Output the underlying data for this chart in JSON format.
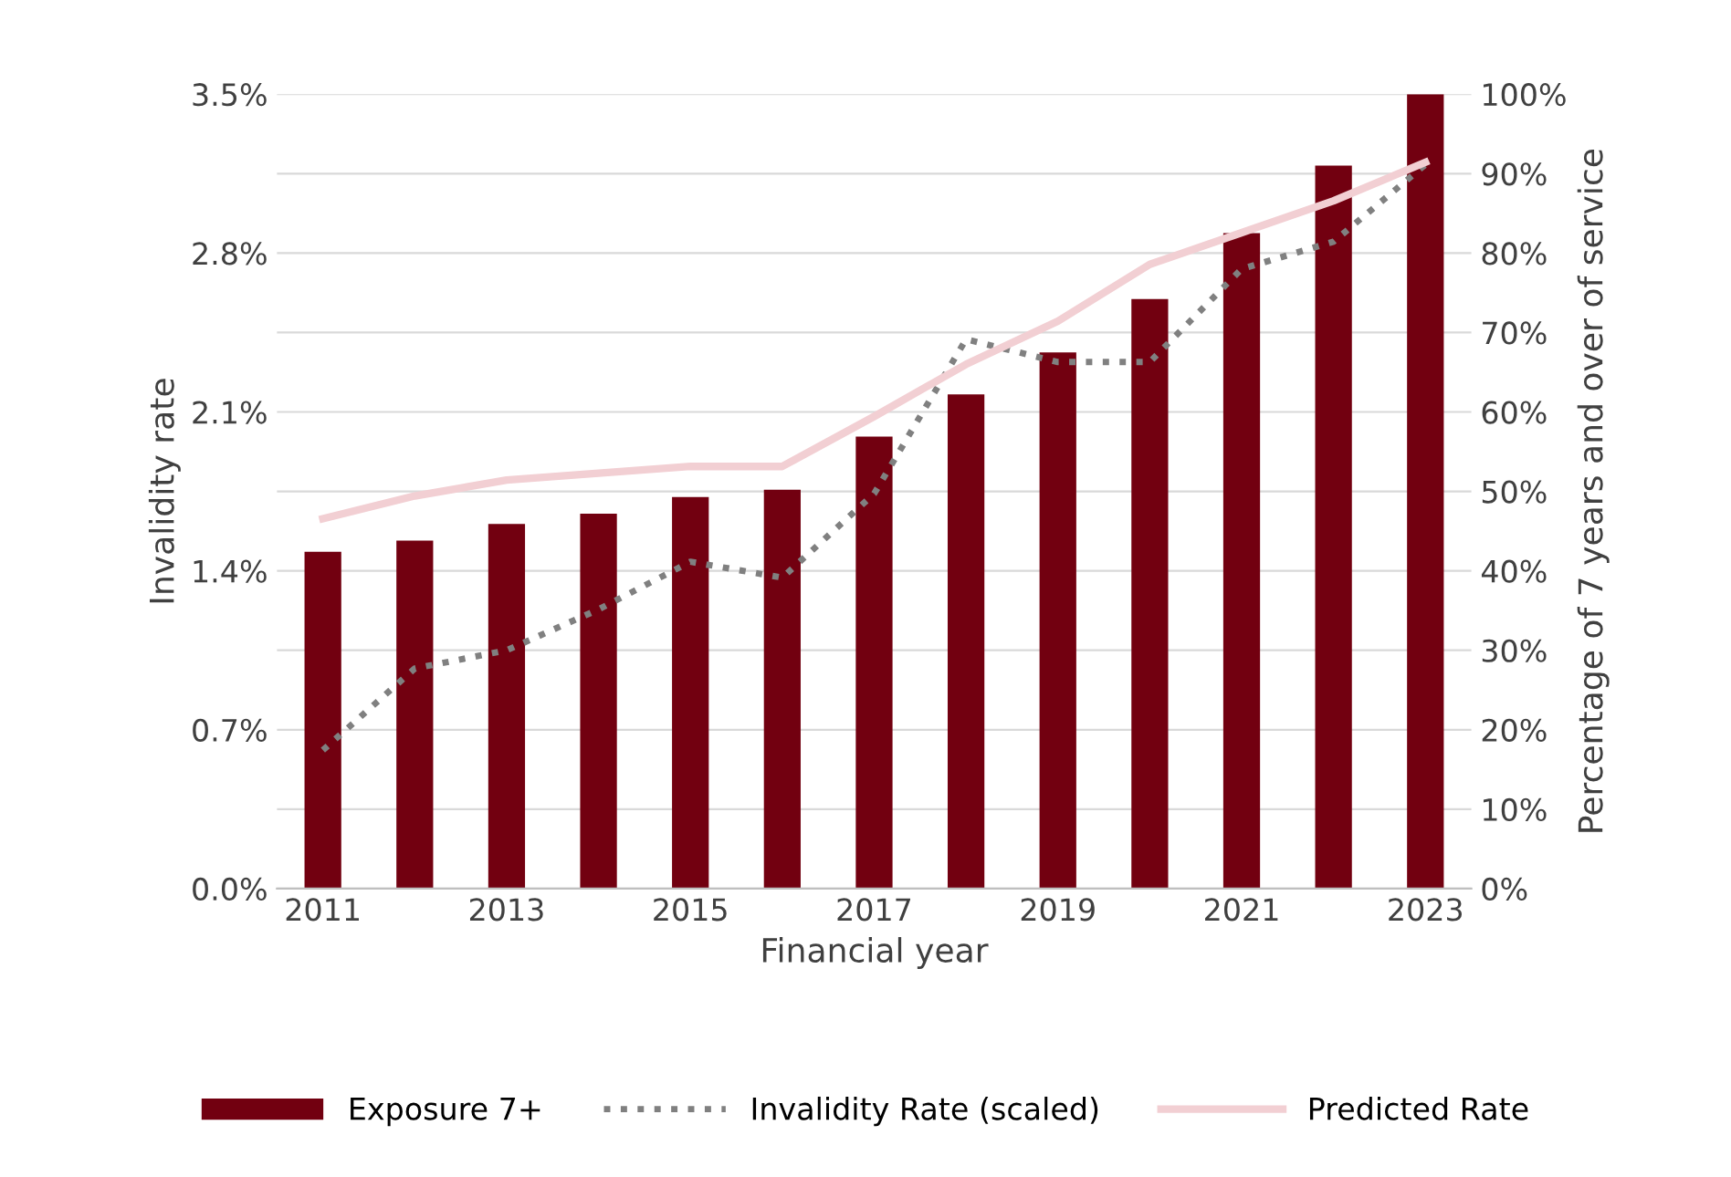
{
  "chart_data": {
    "type": "bar",
    "xlabel": "Financial year",
    "ylabel": "Invalidity rate",
    "y2label": "Percentage of 7 years and over of service",
    "categories": [
      "2011",
      null,
      "2013",
      null,
      "2015",
      null,
      "2017",
      null,
      "2019",
      null,
      "2021",
      null,
      "2023"
    ],
    "series": [
      {
        "name": "Exposure 7+",
        "axis": "y2",
        "color": "#720010",
        "values": [
          42.4,
          43.8,
          45.9,
          47.2,
          49.3,
          50.2,
          56.9,
          62.2,
          67.5,
          74.2,
          82.5,
          91.0,
          100
        ]
      },
      {
        "name": "Invalidity Rate (scaled)",
        "type": "line",
        "line_style": "dotted",
        "color": "#808080",
        "values": [
          0.61,
          0.97,
          1.05,
          1.23,
          1.44,
          1.37,
          1.74,
          2.42,
          2.32,
          2.32,
          2.73,
          2.85,
          3.19
        ]
      },
      {
        "name": "Predicted Rate",
        "type": "line",
        "line_style": "solid",
        "color": "#f2cfd3",
        "values": [
          1.63,
          1.73,
          1.8,
          1.83,
          1.86,
          1.86,
          2.08,
          2.31,
          2.5,
          2.75,
          2.89,
          3.03,
          3.2
        ]
      }
    ],
    "ylim": [
      0,
      3.5
    ],
    "yticks": [
      {
        "value": 0,
        "label": "0.0%"
      },
      {
        "value": 0.7,
        "label": "0.7%"
      },
      {
        "value": 1.4,
        "label": "1.4%"
      },
      {
        "value": 2.1,
        "label": "2.1%"
      },
      {
        "value": 2.8,
        "label": "2.8%"
      },
      {
        "value": 3.5,
        "label": "3.5%"
      }
    ],
    "y2lim": [
      0,
      100
    ],
    "y2ticks": [
      {
        "value": 0,
        "label": "0%"
      },
      {
        "value": 10,
        "label": "10%"
      },
      {
        "value": 20,
        "label": "20%"
      },
      {
        "value": 30,
        "label": "30%"
      },
      {
        "value": 40,
        "label": "40%"
      },
      {
        "value": 50,
        "label": "50%"
      },
      {
        "value": 60,
        "label": "60%"
      },
      {
        "value": 70,
        "label": "70%"
      },
      {
        "value": 80,
        "label": "80%"
      },
      {
        "value": 90,
        "label": "90%"
      },
      {
        "value": 100,
        "label": "100%"
      }
    ],
    "grid": "y",
    "legend": "bottom",
    "marker": "none"
  }
}
